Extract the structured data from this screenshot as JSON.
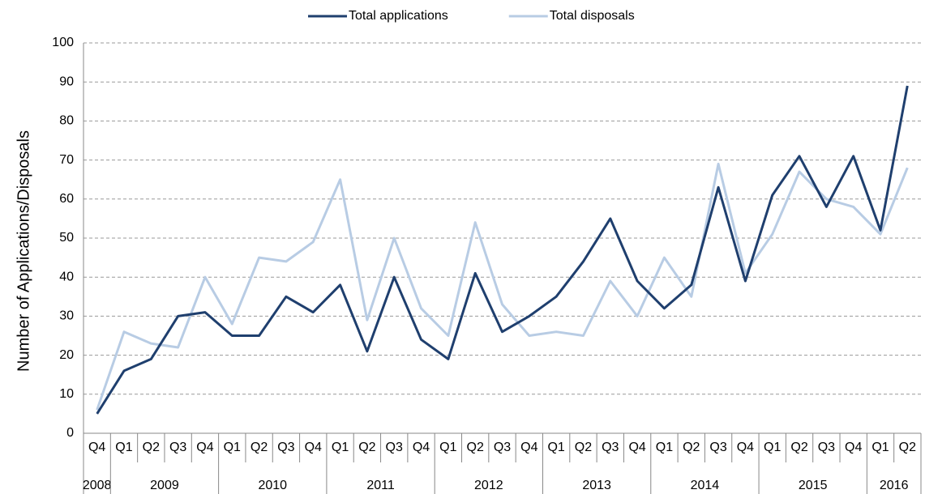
{
  "chart_data": {
    "type": "line",
    "y_label": "Number of Applications/Disposals",
    "groups": [
      {
        "label": "2008",
        "categories": [
          "Q4"
        ]
      },
      {
        "label": "2009",
        "categories": [
          "Q1",
          "Q2",
          "Q3",
          "Q4"
        ]
      },
      {
        "label": "2010",
        "categories": [
          "Q1",
          "Q2",
          "Q3",
          "Q4"
        ]
      },
      {
        "label": "2011",
        "categories": [
          "Q1",
          "Q2",
          "Q3",
          "Q4"
        ]
      },
      {
        "label": "2012",
        "categories": [
          "Q1",
          "Q2",
          "Q3",
          "Q4"
        ]
      },
      {
        "label": "2013",
        "categories": [
          "Q1",
          "Q2",
          "Q3",
          "Q4"
        ]
      },
      {
        "label": "2014",
        "categories": [
          "Q1",
          "Q2",
          "Q3",
          "Q4"
        ]
      },
      {
        "label": "2015",
        "categories": [
          "Q1",
          "Q2",
          "Q3",
          "Q4"
        ]
      },
      {
        "label": "2016",
        "categories": [
          "Q1",
          "Q2"
        ]
      }
    ],
    "series": [
      {
        "name": "Total applications",
        "color": "#1f3f6e",
        "values": [
          5,
          16,
          19,
          30,
          31,
          25,
          25,
          35,
          31,
          38,
          21,
          40,
          24,
          19,
          41,
          26,
          30,
          35,
          44,
          55,
          39,
          32,
          38,
          63,
          39,
          61,
          71,
          58,
          71,
          52,
          89
        ]
      },
      {
        "name": "Total disposals",
        "color": "#b8cce4",
        "values": [
          6,
          26,
          23,
          22,
          40,
          28,
          45,
          44,
          49,
          65,
          29,
          50,
          32,
          25,
          54,
          33,
          25,
          26,
          25,
          39,
          30,
          45,
          35,
          69,
          41,
          51,
          67,
          60,
          58,
          51,
          68
        ]
      }
    ],
    "ylim": [
      0,
      100
    ],
    "yticks": [
      0,
      10,
      20,
      30,
      40,
      50,
      60,
      70,
      80,
      90,
      100
    ],
    "grid": true,
    "legend": "top"
  }
}
